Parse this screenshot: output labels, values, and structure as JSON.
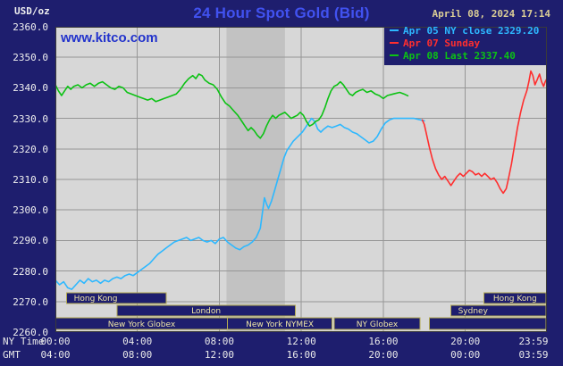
{
  "colors": {
    "background": "#1e1e6e",
    "plot_bg": "#d7d7d7",
    "plot_band": "#c2c2c2",
    "grid": "#969696",
    "plot_border": "#3a3a3a",
    "title": "#4152f0",
    "axis_text": "#f0f0f0",
    "date_text": "#dbce96",
    "kitco_link": "#2233cc",
    "session_border": "#b3aa52",
    "session_text": "#efe6a6",
    "series_apr05": "#2db8ff",
    "series_apr07": "#ff2e2e",
    "series_apr08": "#0cc214"
  },
  "header": {
    "units_label": "USD/oz",
    "title": "24 Hour Spot Gold (Bid)",
    "datetime": "April 08, 2024 17:14",
    "watermark": "www.kitco.com"
  },
  "axes": {
    "y_ticks": [
      "2360.0",
      "2350.0",
      "2340.0",
      "2330.0",
      "2320.0",
      "2310.0",
      "2300.0",
      "2290.0",
      "2280.0",
      "2270.0",
      "2260.0"
    ],
    "ny_time_label": "NY Time",
    "gmt_label": "GMT",
    "x_tick_hours": [
      0,
      4,
      8,
      12,
      16,
      20,
      23.983
    ],
    "ny_ticks": [
      "00:00",
      "04:00",
      "08:00",
      "12:00",
      "16:00",
      "20:00",
      "23:59"
    ],
    "gmt_ticks": [
      "04:00",
      "08:00",
      "12:00",
      "16:00",
      "20:00",
      "00:00",
      "03:59"
    ]
  },
  "sessions": [
    {
      "row": 0,
      "start": 0.55,
      "end": 5.4,
      "label": "Hong Kong",
      "label_align": "left"
    },
    {
      "row": 0,
      "start": 20.9,
      "end": 23.95,
      "label": "Hong Kong",
      "label_align": "center"
    },
    {
      "row": 1,
      "start": 3.0,
      "end": 11.7,
      "label": "London",
      "label_align": "center"
    },
    {
      "row": 1,
      "start": 19.3,
      "end": 23.95,
      "label": "Sydney",
      "label_align": "left"
    },
    {
      "row": 2,
      "start": 0.02,
      "end": 8.4,
      "label": "New York Globex",
      "label_align": "center"
    },
    {
      "row": 2,
      "start": 8.4,
      "end": 13.5,
      "label": "New York NYMEX",
      "label_align": "center"
    },
    {
      "row": 2,
      "start": 13.6,
      "end": 17.8,
      "label": "NY Globex",
      "label_align": "center"
    },
    {
      "row": 2,
      "start": 18.25,
      "end": 23.95,
      "label": "",
      "label_align": "center"
    }
  ],
  "chart_data": {
    "type": "line",
    "title": "24 Hour Spot Gold (Bid)",
    "ylabel": "USD/oz",
    "xlabel": "NY Time",
    "ylim": [
      2260,
      2360
    ],
    "x_hours_range": [
      0,
      23.983
    ],
    "x_gridline_hours": [
      4,
      8,
      12,
      16,
      20
    ],
    "shaded_band_hours": [
      8.35,
      11.2
    ],
    "grid": true,
    "legend_position": "top-right",
    "series": [
      {
        "id": "apr05",
        "name": "Apr 05 NY close 2329.20",
        "color_key": "series_apr05",
        "points": [
          [
            0,
            2277
          ],
          [
            0.2,
            2275.5
          ],
          [
            0.4,
            2276.5
          ],
          [
            0.6,
            2274.5
          ],
          [
            0.8,
            2274
          ],
          [
            1,
            2275.5
          ],
          [
            1.2,
            2277
          ],
          [
            1.4,
            2276
          ],
          [
            1.6,
            2277.5
          ],
          [
            1.8,
            2276.5
          ],
          [
            2,
            2277
          ],
          [
            2.2,
            2276
          ],
          [
            2.4,
            2277
          ],
          [
            2.6,
            2276.5
          ],
          [
            2.8,
            2277.5
          ],
          [
            3,
            2278
          ],
          [
            3.2,
            2277.5
          ],
          [
            3.4,
            2278.5
          ],
          [
            3.6,
            2279
          ],
          [
            3.8,
            2278.5
          ],
          [
            4,
            2279.5
          ],
          [
            4.2,
            2280.5
          ],
          [
            4.4,
            2281.5
          ],
          [
            4.6,
            2282.5
          ],
          [
            4.8,
            2284
          ],
          [
            5,
            2285.5
          ],
          [
            5.2,
            2286.5
          ],
          [
            5.4,
            2287.5
          ],
          [
            5.6,
            2288.5
          ],
          [
            5.8,
            2289.5
          ],
          [
            6,
            2290
          ],
          [
            6.2,
            2290.5
          ],
          [
            6.4,
            2291
          ],
          [
            6.6,
            2290
          ],
          [
            6.8,
            2290.5
          ],
          [
            7,
            2291
          ],
          [
            7.2,
            2290
          ],
          [
            7.4,
            2289.5
          ],
          [
            7.6,
            2290
          ],
          [
            7.8,
            2289
          ],
          [
            8,
            2290.5
          ],
          [
            8.2,
            2291
          ],
          [
            8.4,
            2289.5
          ],
          [
            8.6,
            2288.5
          ],
          [
            8.8,
            2287.5
          ],
          [
            9,
            2287
          ],
          [
            9.2,
            2288
          ],
          [
            9.4,
            2288.5
          ],
          [
            9.6,
            2289.5
          ],
          [
            9.8,
            2291
          ],
          [
            10,
            2294
          ],
          [
            10.1,
            2299
          ],
          [
            10.2,
            2304
          ],
          [
            10.3,
            2302
          ],
          [
            10.4,
            2300.5
          ],
          [
            10.55,
            2303
          ],
          [
            10.7,
            2306.5
          ],
          [
            10.85,
            2310
          ],
          [
            11,
            2313.5
          ],
          [
            11.15,
            2317
          ],
          [
            11.3,
            2319.5
          ],
          [
            11.45,
            2321
          ],
          [
            11.6,
            2322.5
          ],
          [
            11.75,
            2323.5
          ],
          [
            11.9,
            2324.5
          ],
          [
            12.05,
            2325.5
          ],
          [
            12.2,
            2327
          ],
          [
            12.35,
            2328.5
          ],
          [
            12.5,
            2330
          ],
          [
            12.65,
            2329
          ],
          [
            12.8,
            2326.5
          ],
          [
            12.95,
            2325.5
          ],
          [
            13.1,
            2326.5
          ],
          [
            13.3,
            2327.5
          ],
          [
            13.5,
            2327
          ],
          [
            13.7,
            2327.5
          ],
          [
            13.9,
            2328
          ],
          [
            14.1,
            2327
          ],
          [
            14.3,
            2326.5
          ],
          [
            14.5,
            2325.5
          ],
          [
            14.7,
            2325
          ],
          [
            14.9,
            2324
          ],
          [
            15.1,
            2323
          ],
          [
            15.3,
            2322
          ],
          [
            15.5,
            2322.5
          ],
          [
            15.7,
            2324
          ],
          [
            15.9,
            2326.5
          ],
          [
            16.1,
            2328.5
          ],
          [
            16.3,
            2329.5
          ],
          [
            16.5,
            2330
          ],
          [
            17,
            2330
          ],
          [
            17.5,
            2330
          ],
          [
            18,
            2329.2
          ]
        ]
      },
      {
        "id": "apr07",
        "name": "Apr 07 Sunday",
        "color_key": "series_apr07",
        "points": [
          [
            17.9,
            2329.5
          ],
          [
            18,
            2328
          ],
          [
            18.1,
            2325
          ],
          [
            18.25,
            2320.5
          ],
          [
            18.4,
            2316.5
          ],
          [
            18.55,
            2313.5
          ],
          [
            18.7,
            2311.5
          ],
          [
            18.85,
            2310
          ],
          [
            19,
            2311
          ],
          [
            19.15,
            2309.5
          ],
          [
            19.3,
            2308
          ],
          [
            19.45,
            2309.5
          ],
          [
            19.6,
            2311
          ],
          [
            19.75,
            2312
          ],
          [
            19.9,
            2311
          ],
          [
            20.05,
            2312
          ],
          [
            20.2,
            2313
          ],
          [
            20.35,
            2312.5
          ],
          [
            20.5,
            2311.5
          ],
          [
            20.65,
            2312
          ],
          [
            20.8,
            2311
          ],
          [
            20.95,
            2312
          ],
          [
            21.1,
            2311
          ],
          [
            21.25,
            2310
          ],
          [
            21.4,
            2310.5
          ],
          [
            21.55,
            2309
          ],
          [
            21.7,
            2307
          ],
          [
            21.85,
            2305.5
          ],
          [
            22,
            2307
          ],
          [
            22.1,
            2310
          ],
          [
            22.25,
            2315
          ],
          [
            22.4,
            2321
          ],
          [
            22.55,
            2327
          ],
          [
            22.7,
            2332
          ],
          [
            22.85,
            2336
          ],
          [
            23,
            2339
          ],
          [
            23.1,
            2342
          ],
          [
            23.2,
            2345.5
          ],
          [
            23.3,
            2344
          ],
          [
            23.4,
            2341
          ],
          [
            23.5,
            2342.5
          ],
          [
            23.62,
            2344.5
          ],
          [
            23.72,
            2342
          ],
          [
            23.82,
            2340.5
          ],
          [
            23.9,
            2342
          ],
          [
            23.98,
            2343
          ]
        ]
      },
      {
        "id": "apr08",
        "name": "Apr 08 Last 2337.40",
        "color_key": "series_apr08",
        "points": [
          [
            0,
            2341
          ],
          [
            0.15,
            2339
          ],
          [
            0.3,
            2337.5
          ],
          [
            0.45,
            2339
          ],
          [
            0.6,
            2340.5
          ],
          [
            0.75,
            2339.5
          ],
          [
            0.9,
            2340.5
          ],
          [
            1.1,
            2341
          ],
          [
            1.3,
            2340
          ],
          [
            1.5,
            2341
          ],
          [
            1.7,
            2341.5
          ],
          [
            1.9,
            2340.5
          ],
          [
            2.1,
            2341.5
          ],
          [
            2.3,
            2342
          ],
          [
            2.5,
            2341
          ],
          [
            2.7,
            2340
          ],
          [
            2.9,
            2339.5
          ],
          [
            3.1,
            2340.5
          ],
          [
            3.3,
            2340
          ],
          [
            3.5,
            2338.5
          ],
          [
            3.7,
            2338
          ],
          [
            3.9,
            2337.5
          ],
          [
            4.1,
            2337
          ],
          [
            4.3,
            2336.5
          ],
          [
            4.5,
            2336
          ],
          [
            4.7,
            2336.5
          ],
          [
            4.9,
            2335.5
          ],
          [
            5.1,
            2336
          ],
          [
            5.3,
            2336.5
          ],
          [
            5.5,
            2337
          ],
          [
            5.7,
            2337.5
          ],
          [
            5.9,
            2338
          ],
          [
            6.1,
            2339.5
          ],
          [
            6.3,
            2341.5
          ],
          [
            6.5,
            2343
          ],
          [
            6.7,
            2344
          ],
          [
            6.85,
            2343
          ],
          [
            7,
            2344.5
          ],
          [
            7.15,
            2344
          ],
          [
            7.3,
            2342.5
          ],
          [
            7.5,
            2341.5
          ],
          [
            7.7,
            2341
          ],
          [
            7.9,
            2339.5
          ],
          [
            8.1,
            2337
          ],
          [
            8.3,
            2335
          ],
          [
            8.5,
            2334
          ],
          [
            8.7,
            2332.5
          ],
          [
            8.9,
            2331
          ],
          [
            9.1,
            2329
          ],
          [
            9.25,
            2327.5
          ],
          [
            9.4,
            2326
          ],
          [
            9.55,
            2327
          ],
          [
            9.7,
            2326
          ],
          [
            9.85,
            2324.5
          ],
          [
            10,
            2323.5
          ],
          [
            10.15,
            2325
          ],
          [
            10.3,
            2327.5
          ],
          [
            10.45,
            2329.5
          ],
          [
            10.6,
            2331
          ],
          [
            10.75,
            2330
          ],
          [
            10.9,
            2331
          ],
          [
            11.05,
            2331.5
          ],
          [
            11.2,
            2332
          ],
          [
            11.35,
            2331
          ],
          [
            11.5,
            2330
          ],
          [
            11.65,
            2330.5
          ],
          [
            11.8,
            2331
          ],
          [
            11.95,
            2332
          ],
          [
            12.1,
            2331
          ],
          [
            12.25,
            2329
          ],
          [
            12.4,
            2327.5
          ],
          [
            12.55,
            2328
          ],
          [
            12.7,
            2329
          ],
          [
            12.85,
            2329.5
          ],
          [
            13,
            2331
          ],
          [
            13.15,
            2333.5
          ],
          [
            13.3,
            2336.5
          ],
          [
            13.45,
            2339
          ],
          [
            13.6,
            2340.5
          ],
          [
            13.75,
            2341
          ],
          [
            13.9,
            2342
          ],
          [
            14.05,
            2341
          ],
          [
            14.2,
            2339.5
          ],
          [
            14.35,
            2338
          ],
          [
            14.5,
            2337.5
          ],
          [
            14.65,
            2338.5
          ],
          [
            14.8,
            2339
          ],
          [
            15,
            2339.5
          ],
          [
            15.2,
            2338.5
          ],
          [
            15.4,
            2339
          ],
          [
            15.6,
            2338
          ],
          [
            15.8,
            2337.5
          ],
          [
            16,
            2336.5
          ],
          [
            16.2,
            2337.5
          ],
          [
            16.5,
            2338
          ],
          [
            16.8,
            2338.5
          ],
          [
            17,
            2338
          ],
          [
            17.2,
            2337.4
          ]
        ]
      }
    ]
  }
}
